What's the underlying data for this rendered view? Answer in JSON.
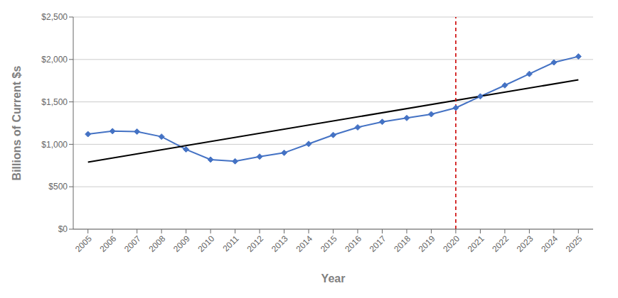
{
  "chart_data": {
    "type": "line",
    "xlabel": "Year",
    "ylabel": "Billions of Current $s",
    "x": [
      2005,
      2006,
      2007,
      2008,
      2009,
      2010,
      2011,
      2012,
      2013,
      2014,
      2015,
      2016,
      2017,
      2018,
      2019,
      2020,
      2021,
      2022,
      2023,
      2024,
      2025
    ],
    "series": [
      {
        "values": [
          1120,
          1155,
          1150,
          1090,
          940,
          820,
          800,
          855,
          900,
          1005,
          1110,
          1200,
          1265,
          1310,
          1355,
          1430,
          1565,
          1695,
          1830,
          1965,
          2035
        ],
        "color": "#4472C4",
        "marker": "diamond"
      },
      {
        "x": [
          2005,
          2025
        ],
        "values": [
          790,
          1760
        ],
        "color": "#000000"
      }
    ],
    "vlines": [
      {
        "x": 2020,
        "color": "#CC0000",
        "line_style": "dashed"
      }
    ],
    "xlim": [
      2004.4,
      2025.6
    ],
    "xticks": [
      2005,
      2006,
      2007,
      2008,
      2009,
      2010,
      2011,
      2012,
      2013,
      2014,
      2015,
      2016,
      2017,
      2018,
      2019,
      2020,
      2021,
      2022,
      2023,
      2024,
      2025
    ],
    "ylim": [
      0,
      2500
    ],
    "yticks": [
      {
        "value": 0,
        "label": "$0"
      },
      {
        "value": 500,
        "label": "$500"
      },
      {
        "value": 1000,
        "label": "$1,000"
      },
      {
        "value": 1500,
        "label": "$1,500"
      },
      {
        "value": 2000,
        "label": "$2,000"
      },
      {
        "value": 2500,
        "label": "$2,500"
      }
    ],
    "grid": "y"
  }
}
